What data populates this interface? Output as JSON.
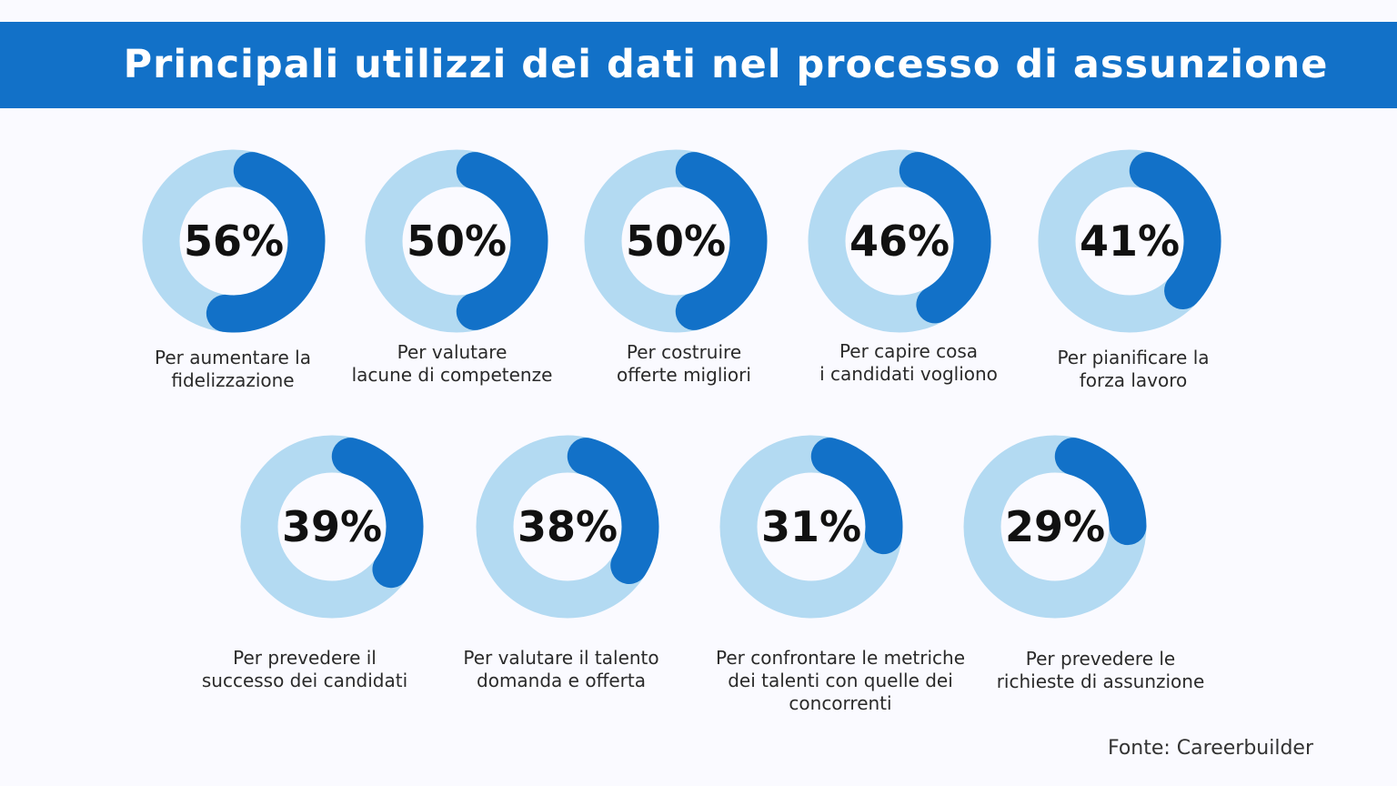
{
  "title": "Principali utilizzi dei dati nel processo di assunzione",
  "source": "Fonte: Careerbuilder",
  "colors": {
    "accent": "#1271c8",
    "track": "#b3daf2",
    "banner": "#1271c8"
  },
  "chart_data": {
    "type": "donut",
    "title": "Principali utilizzi dei dati nel processo di assunzione",
    "categories": [
      "Per aumentare la\nfidelizzazione",
      "Per valutare\nlacune di competenze",
      "Per costruire\nofferte migliori",
      "Per capire cosa\ni candidati vogliono",
      "Per pianificare la\nforza lavoro",
      "Per prevedere il\nsuccesso dei candidati",
      "Per valutare il talento\ndomanda e offerta",
      "Per confrontare le metriche\ndei talenti con quelle dei\nconcorrenti",
      "Per prevedere le\nrichieste di assunzione"
    ],
    "values": [
      56,
      50,
      50,
      46,
      41,
      39,
      38,
      31,
      29
    ],
    "value_labels": [
      "56%",
      "50%",
      "50%",
      "46%",
      "41%",
      "39%",
      "38%",
      "31%",
      "29%"
    ],
    "unit": "%"
  }
}
